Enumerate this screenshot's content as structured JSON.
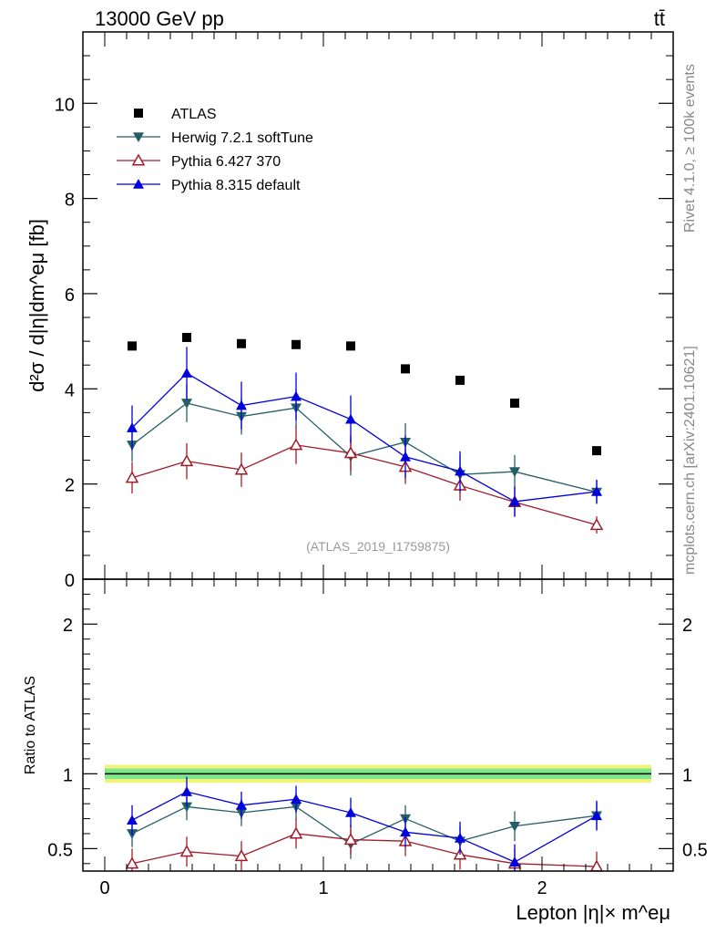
{
  "header": {
    "left_label": "13000 GeV pp",
    "right_label": "tt̄"
  },
  "side_text": {
    "rivet": "Rivet 4.1.0, ≥ 100k events",
    "mcplots": "mcplots.cern.ch [arXiv:2401.10621]"
  },
  "watermark": "(ATLAS_2019_I1759875)",
  "chart_data": [
    {
      "type": "scatter",
      "panel": "main",
      "ylabel": "d²σ / d|η|dm^eμ [fb]",
      "xlim": [
        -0.1,
        2.6
      ],
      "ylim": [
        0,
        11.5
      ],
      "y_ticks": [
        0,
        2,
        4,
        6,
        8,
        10
      ],
      "y_tick_labels": [
        "0",
        "2",
        "4",
        "6",
        "8",
        "10"
      ],
      "x": [
        0.125,
        0.375,
        0.625,
        0.875,
        1.125,
        1.375,
        1.625,
        1.875,
        2.25
      ],
      "legend_position": "top-left",
      "series": [
        {
          "name": "ATLAS",
          "color": "#000000",
          "marker": "square",
          "values": [
            4.9,
            5.08,
            4.95,
            4.93,
            4.9,
            4.42,
            4.18,
            3.7,
            2.7
          ]
        },
        {
          "name": "Herwig 7.2.1 softTune",
          "color": "#255f66",
          "marker": "triangle-down",
          "values": [
            2.82,
            3.7,
            3.42,
            3.6,
            2.58,
            2.88,
            2.2,
            2.26,
            1.83
          ],
          "errors": [
            0.35,
            0.4,
            0.38,
            0.4,
            0.4,
            0.4,
            0.4,
            0.35,
            0.25
          ]
        },
        {
          "name": "Pythia 6.427 370",
          "color": "#a01c2a",
          "marker": "triangle-up-open",
          "values": [
            2.13,
            2.48,
            2.3,
            2.82,
            2.65,
            2.36,
            1.97,
            1.62,
            1.14
          ],
          "errors": [
            0.33,
            0.38,
            0.36,
            0.4,
            0.38,
            0.36,
            0.32,
            0.3,
            0.18
          ]
        },
        {
          "name": "Pythia 8.315 default",
          "color": "#0000dd",
          "marker": "triangle-up",
          "values": [
            3.18,
            4.33,
            3.65,
            3.84,
            3.36,
            2.57,
            2.27,
            1.63,
            1.84
          ],
          "errors": [
            0.47,
            0.55,
            0.5,
            0.5,
            0.5,
            0.45,
            0.42,
            0.32,
            0.25
          ]
        }
      ]
    },
    {
      "type": "scatter",
      "panel": "ratio",
      "ylabel": "Ratio to ATLAS",
      "xlabel": "Lepton |η|× m^eμ",
      "xlim": [
        -0.1,
        2.6
      ],
      "ylim": [
        0.35,
        2.3
      ],
      "y_ticks": [
        0.5,
        1,
        2
      ],
      "y_tick_labels": [
        "0.5",
        "1",
        "2"
      ],
      "x_ticks": [
        0,
        1,
        2
      ],
      "x_tick_labels": [
        "0",
        "1",
        "2"
      ],
      "x": [
        0.125,
        0.375,
        0.625,
        0.875,
        1.125,
        1.375,
        1.625,
        1.875,
        2.25
      ],
      "reference_line": 1.0,
      "uncertainty_band": {
        "inner": 0.035,
        "outer": 0.06,
        "inner_color": "#7fe88a",
        "outer_color": "#f2f27a"
      },
      "series": [
        {
          "name": "Herwig 7.2.1 softTune",
          "color": "#255f66",
          "marker": "triangle-down",
          "values": [
            0.6,
            0.78,
            0.74,
            0.78,
            0.53,
            0.7,
            0.55,
            0.65,
            0.72
          ],
          "errors": [
            0.09,
            0.09,
            0.09,
            0.09,
            0.1,
            0.09,
            0.1,
            0.1,
            0.09
          ]
        },
        {
          "name": "Pythia 6.427 370",
          "color": "#a01c2a",
          "marker": "triangle-up-open",
          "values": [
            0.4,
            0.48,
            0.45,
            0.6,
            0.56,
            0.55,
            0.46,
            0.4,
            0.38
          ],
          "errors": [
            0.1,
            0.1,
            0.1,
            0.1,
            0.1,
            0.1,
            0.1,
            0.1,
            0.1
          ]
        },
        {
          "name": "Pythia 8.315 default",
          "color": "#0000dd",
          "marker": "triangle-up",
          "values": [
            0.69,
            0.88,
            0.79,
            0.83,
            0.74,
            0.61,
            0.57,
            0.41,
            0.72
          ],
          "errors": [
            0.1,
            0.1,
            0.09,
            0.09,
            0.1,
            0.1,
            0.11,
            0.12,
            0.1
          ]
        }
      ]
    }
  ]
}
